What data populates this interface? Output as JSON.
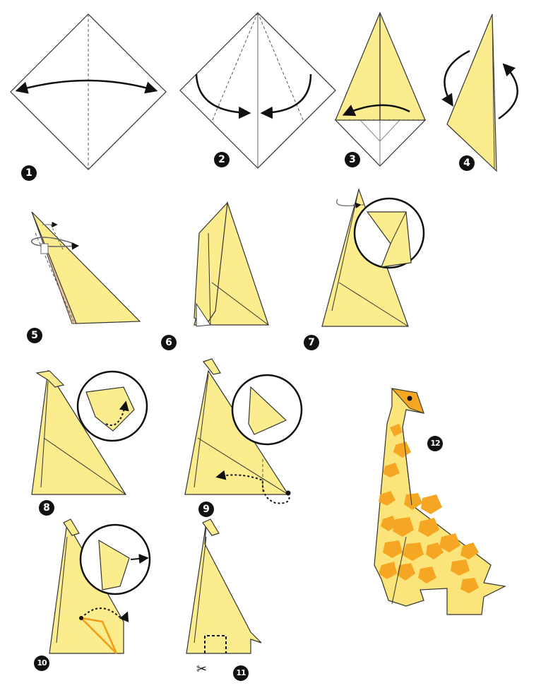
{
  "colors": {
    "paper_front": "#fbec8e",
    "paper_shade": "#efd86c",
    "paper_back": "#ffffff",
    "outline": "#333333",
    "giraffe_body": "#fbe57a",
    "giraffe_spots": "#f5a623",
    "arrow": "#111111",
    "highlight_line": "#f39c12"
  },
  "steps": [
    {
      "number": "1",
      "icon": "square-diamond-fold-in-half"
    },
    {
      "number": "2",
      "icon": "fold-sides-to-center"
    },
    {
      "number": "3",
      "icon": "fold-bottom-up"
    },
    {
      "number": "4",
      "icon": "rotate-model"
    },
    {
      "number": "5",
      "icon": "inside-reverse-fold-neck"
    },
    {
      "number": "6",
      "icon": "neck-formed"
    },
    {
      "number": "7",
      "icon": "reverse-fold-head"
    },
    {
      "number": "8",
      "icon": "head-detail"
    },
    {
      "number": "9",
      "icon": "fold-tail-inside"
    },
    {
      "number": "10",
      "icon": "reverse-fold-tail"
    },
    {
      "number": "11",
      "icon": "cut-legs-scissors"
    },
    {
      "number": "12",
      "icon": "finished-giraffe"
    }
  ]
}
